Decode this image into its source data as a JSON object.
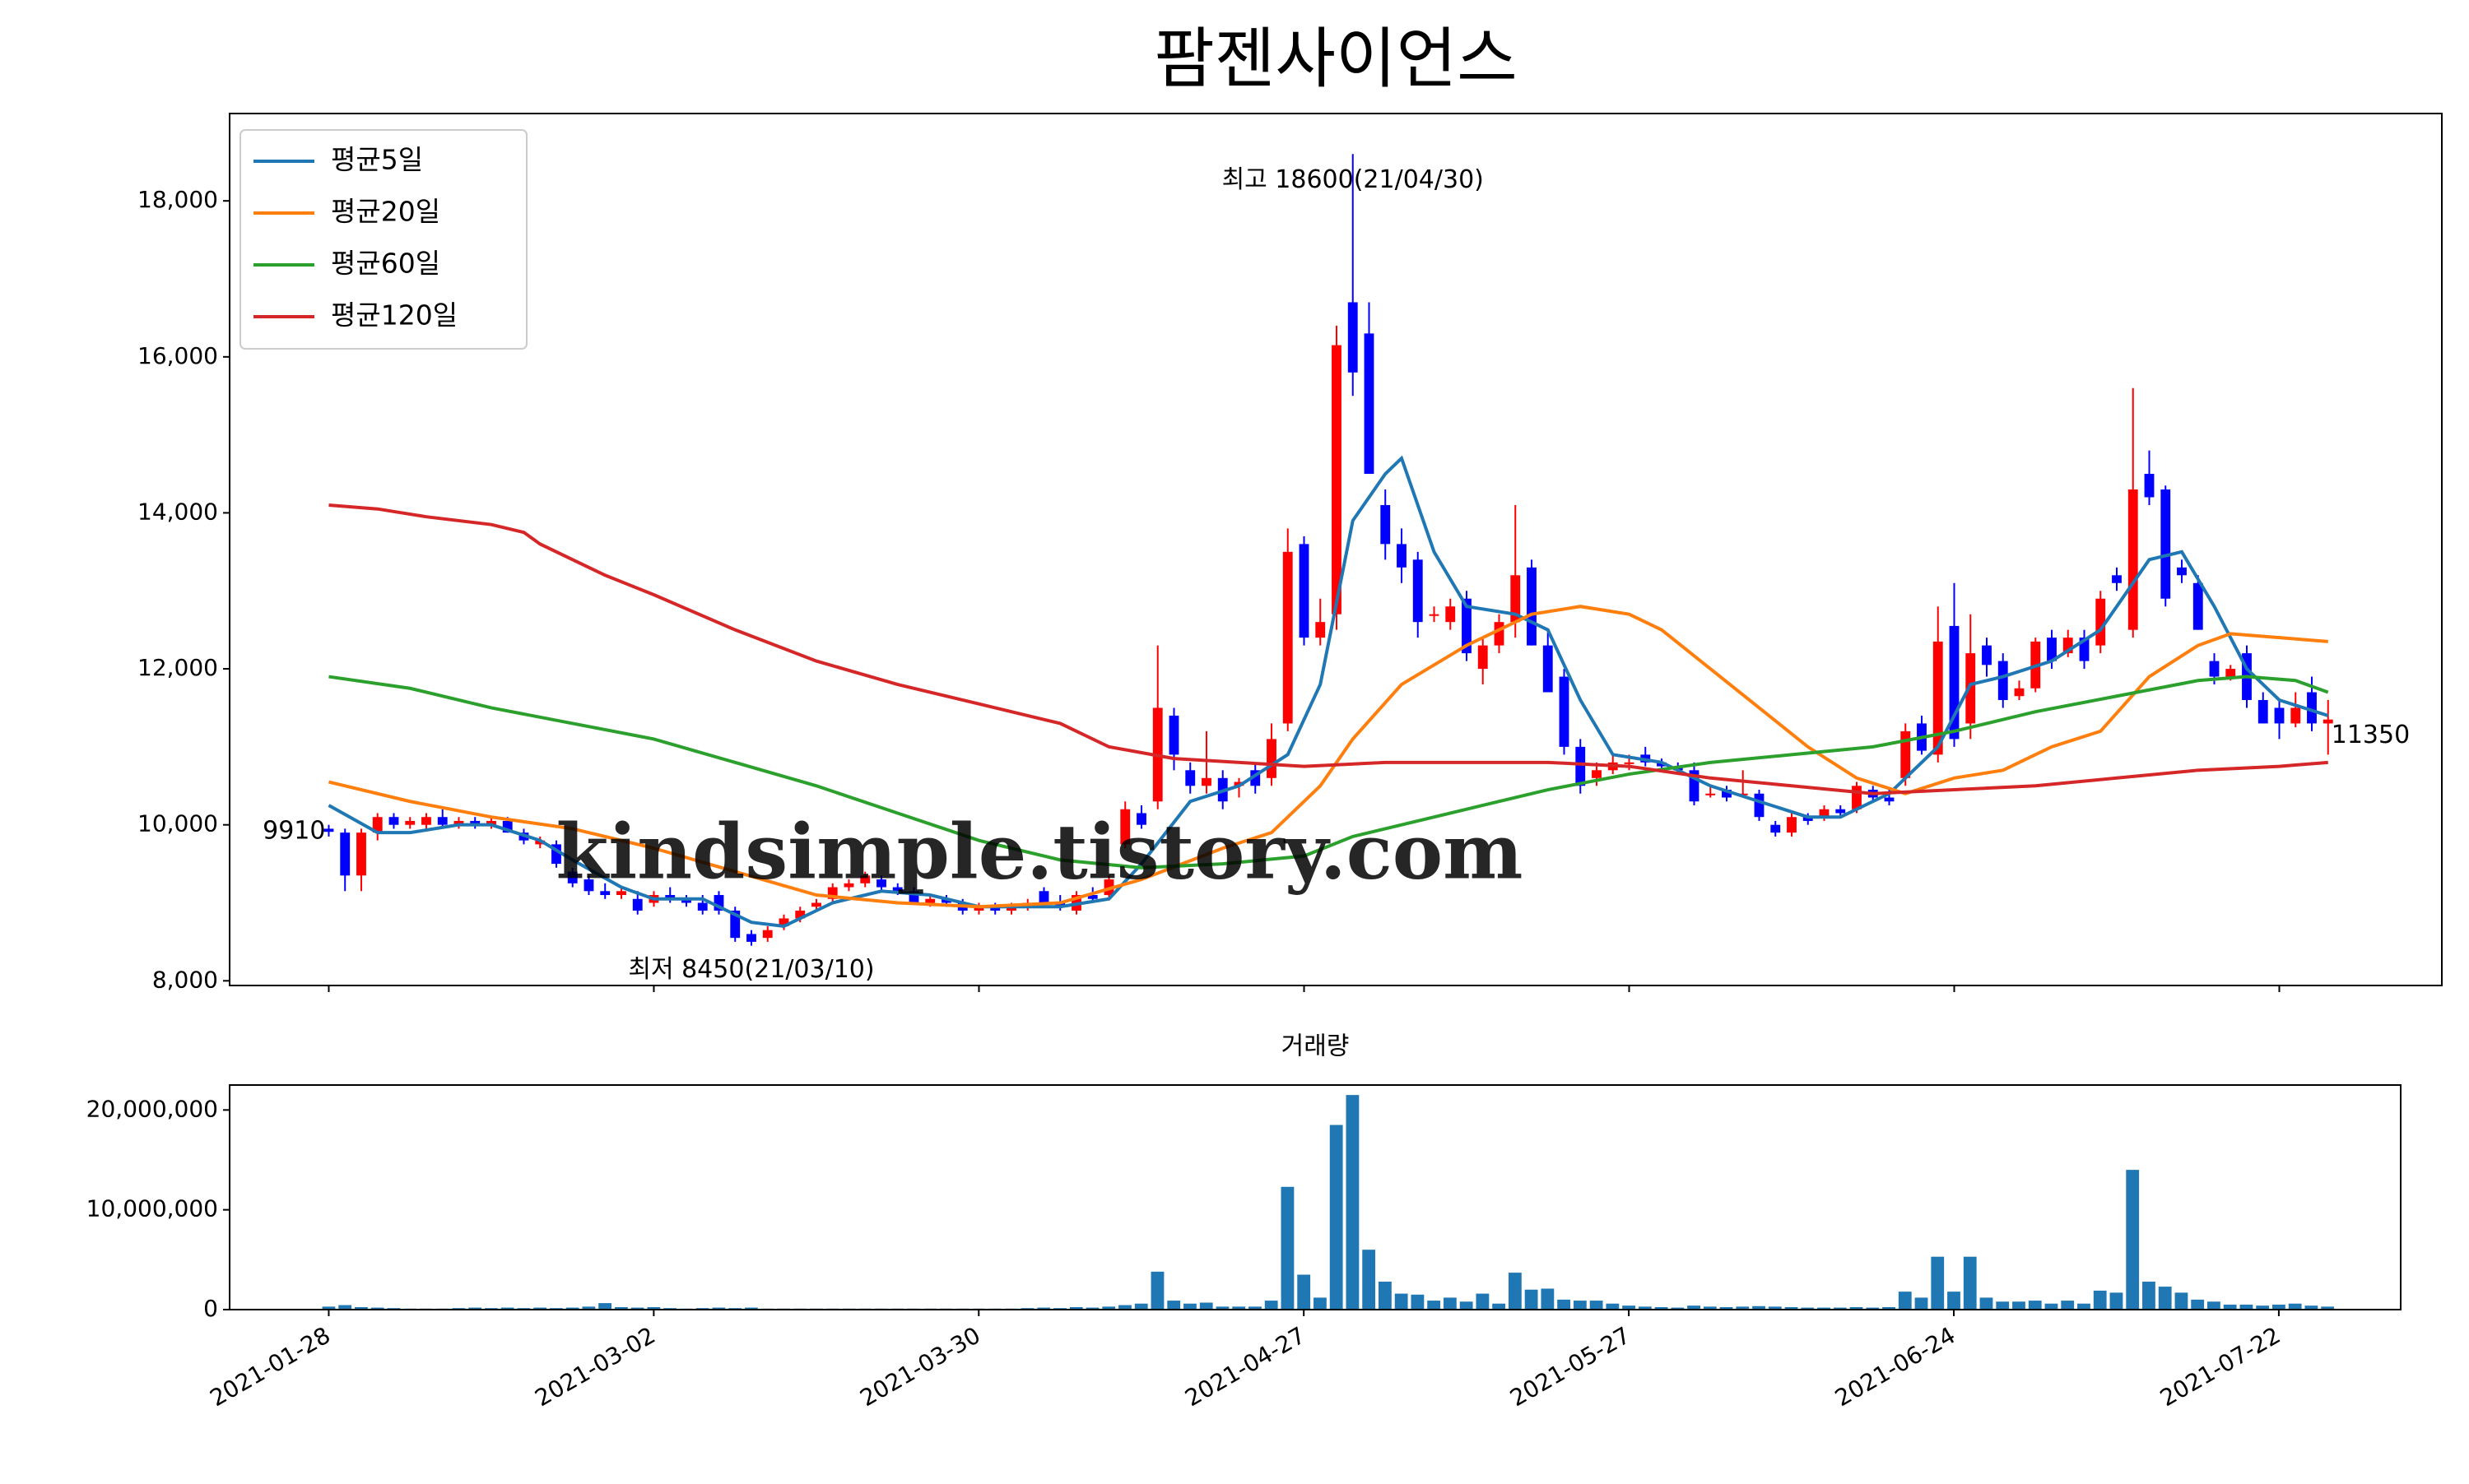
{
  "chart_data": [
    {
      "type": "candlestick",
      "title": "팜젠사이언스",
      "up_color": "red",
      "down_color": "blue",
      "legend": "upper left",
      "watermark": "kindsimple.tistory.com",
      "xlim": [
        -6.1,
        130
      ],
      "ylim": [
        7940,
        19120
      ],
      "xticks": [
        0,
        20,
        40,
        60,
        80,
        100,
        120
      ],
      "yticks": [
        {
          "value": 8000,
          "label": "8,000"
        },
        {
          "value": 10000,
          "label": "10,000"
        },
        {
          "value": 12000,
          "label": "12,000"
        },
        {
          "value": 14000,
          "label": "14,000"
        },
        {
          "value": 16000,
          "label": "16,000"
        },
        {
          "value": 18000,
          "label": "18,000"
        }
      ],
      "x": [
        0,
        1,
        2,
        3,
        4,
        5,
        6,
        7,
        8,
        9,
        10,
        11,
        12,
        13,
        14,
        15,
        16,
        17,
        18,
        19,
        20,
        21,
        22,
        23,
        24,
        25,
        26,
        27,
        28,
        29,
        30,
        31,
        32,
        33,
        34,
        35,
        36,
        37,
        38,
        39,
        40,
        41,
        42,
        43,
        44,
        45,
        46,
        47,
        48,
        49,
        50,
        51,
        52,
        53,
        54,
        55,
        56,
        57,
        58,
        59,
        60,
        61,
        62,
        63,
        64,
        65,
        66,
        67,
        68,
        69,
        70,
        71,
        72,
        73,
        74,
        75,
        76,
        77,
        78,
        79,
        80,
        81,
        82,
        83,
        84,
        85,
        86,
        87,
        88,
        89,
        90,
        91,
        92,
        93,
        94,
        95,
        96,
        97,
        98,
        99,
        100,
        101,
        102,
        103,
        104,
        105,
        106,
        107,
        108,
        109,
        110,
        111,
        112,
        113,
        114,
        115,
        116,
        117,
        118,
        119,
        120,
        121,
        122,
        123
      ],
      "open": [
        9950,
        9900,
        9350,
        9900,
        10100,
        10000,
        10000,
        10100,
        10000,
        10050,
        10000,
        10050,
        9900,
        9750,
        9750,
        9400,
        9300,
        9150,
        9100,
        9050,
        9000,
        9100,
        9050,
        9000,
        9100,
        8900,
        8600,
        8550,
        8700,
        8800,
        8950,
        9050,
        9200,
        9250,
        9300,
        9200,
        9150,
        9000,
        9050,
        9000,
        8900,
        8950,
        8900,
        8950,
        9150,
        9000,
        8900,
        9100,
        9100,
        9750,
        10150,
        10300,
        11400,
        10700,
        10500,
        10600,
        10500,
        10700,
        10600,
        11300,
        13600,
        12400,
        12700,
        16700,
        16300,
        14100,
        13600,
        13400,
        12700,
        12600,
        12900,
        12000,
        12300,
        12600,
        13300,
        12300,
        11900,
        11000,
        10600,
        10700,
        10800,
        10900,
        10800,
        10750,
        10700,
        10400,
        10450,
        10400,
        10400,
        10000,
        9900,
        10100,
        10100,
        10200,
        10200,
        10450,
        10350,
        10600,
        11300,
        10900,
        12550,
        11300,
        12300,
        12100,
        11650,
        11750,
        12400,
        12200,
        12400,
        12300,
        13200,
        12500,
        14500,
        14300,
        13300,
        13100,
        12100,
        11900,
        12200,
        11600,
        11500,
        11300,
        11700,
        11300
      ],
      "high": [
        10000,
        9950,
        9950,
        10150,
        10150,
        10100,
        10150,
        10200,
        10100,
        10100,
        10100,
        10100,
        9950,
        9850,
        9800,
        9450,
        9350,
        9250,
        9200,
        9150,
        9150,
        9200,
        9100,
        9100,
        9150,
        8950,
        8650,
        8700,
        8850,
        8950,
        9050,
        9250,
        9300,
        9400,
        9350,
        9250,
        9200,
        9100,
        9100,
        9050,
        9000,
        9000,
        9000,
        9050,
        9200,
        9100,
        9150,
        9200,
        9350,
        10300,
        10250,
        12300,
        11500,
        10800,
        11200,
        10700,
        10600,
        10800,
        11300,
        13800,
        13700,
        12900,
        16400,
        18600,
        16700,
        14300,
        13800,
        13500,
        12800,
        12900,
        13000,
        12400,
        12700,
        14100,
        13400,
        12500,
        12000,
        11100,
        10800,
        10900,
        10900,
        11000,
        10850,
        10800,
        10800,
        10500,
        10500,
        10700,
        10450,
        10050,
        10150,
        10150,
        10250,
        10250,
        10550,
        10500,
        10450,
        11300,
        11400,
        12800,
        13100,
        12700,
        12400,
        12200,
        11850,
        12400,
        12500,
        12500,
        12500,
        13000,
        13300,
        15600,
        14800,
        14350,
        13400,
        13200,
        12200,
        12050,
        12300,
        11700,
        11600,
        11700,
        11900,
        11600
      ],
      "low": [
        9850,
        9150,
        9150,
        9800,
        9950,
        9950,
        9950,
        9950,
        9950,
        9950,
        9950,
        9900,
        9750,
        9700,
        9450,
        9200,
        9100,
        9050,
        9050,
        8850,
        8950,
        9000,
        8950,
        8850,
        8850,
        8500,
        8450,
        8500,
        8650,
        8750,
        8900,
        9000,
        9150,
        9200,
        9150,
        9100,
        9000,
        8950,
        8950,
        8850,
        8850,
        8850,
        8850,
        8900,
        8950,
        8900,
        8850,
        9000,
        9050,
        9700,
        9950,
        10200,
        10700,
        10400,
        10400,
        10200,
        10350,
        10400,
        10500,
        11200,
        12300,
        12300,
        12500,
        15500,
        14500,
        13400,
        13100,
        12400,
        12600,
        12500,
        12100,
        11800,
        12200,
        12400,
        12300,
        11700,
        10900,
        10400,
        10500,
        10650,
        10700,
        10750,
        10700,
        10650,
        10250,
        10350,
        10300,
        10350,
        10050,
        9850,
        9850,
        10000,
        10050,
        10100,
        10150,
        10300,
        10250,
        10500,
        10900,
        10800,
        11000,
        11100,
        11900,
        11500,
        11600,
        11700,
        12000,
        12150,
        12000,
        12200,
        13000,
        12400,
        14100,
        12800,
        13100,
        12500,
        11800,
        11850,
        11500,
        11300,
        11100,
        11250,
        11200,
        10900
      ],
      "close": [
        9910,
        9350,
        9900,
        10100,
        10000,
        10050,
        10100,
        10000,
        10050,
        10000,
        10050,
        9900,
        9800,
        9800,
        9500,
        9250,
        9150,
        9100,
        9150,
        8900,
        9100,
        9050,
        9000,
        8900,
        8900,
        8550,
        8500,
        8650,
        8800,
        8900,
        9000,
        9200,
        9250,
        9350,
        9200,
        9150,
        9000,
        9050,
        9000,
        8900,
        8950,
        8900,
        8950,
        9000,
        9000,
        8950,
        9100,
        9050,
        9300,
        10200,
        10000,
        11500,
        10900,
        10500,
        10600,
        10300,
        10550,
        10500,
        11100,
        13500,
        12400,
        12600,
        16150,
        15800,
        14500,
        13600,
        13300,
        12600,
        12700,
        12800,
        12200,
        12300,
        12600,
        13200,
        12300,
        11700,
        11000,
        10500,
        10700,
        10800,
        10800,
        10800,
        10750,
        10700,
        10300,
        10400,
        10350,
        10400,
        10100,
        9900,
        10100,
        10050,
        10200,
        10150,
        10500,
        10350,
        10300,
        11200,
        10950,
        12350,
        11100,
        12200,
        12050,
        11600,
        11750,
        12350,
        12100,
        12400,
        12100,
        12900,
        13100,
        14300,
        14200,
        12900,
        13200,
        12500,
        11900,
        12000,
        11600,
        11300,
        11300,
        11500,
        11300,
        11350
      ],
      "series": [
        {
          "name": "평균5일",
          "color": "#1f77b4",
          "x": [
            0,
            3,
            5,
            8,
            10,
            13,
            15,
            18,
            20,
            23,
            26,
            28,
            31,
            34,
            37,
            40,
            45,
            48,
            50,
            53,
            56,
            59,
            61,
            63,
            65,
            66,
            68,
            70,
            73,
            75,
            77,
            79,
            82,
            85,
            88,
            91,
            93,
            96,
            99,
            101,
            103,
            106,
            109,
            112,
            114,
            116,
            118,
            120,
            123
          ],
          "values": [
            10250,
            9900,
            9900,
            10000,
            10000,
            9800,
            9550,
            9200,
            9050,
            9050,
            8750,
            8700,
            9000,
            9150,
            9100,
            8950,
            8950,
            9050,
            9500,
            10300,
            10500,
            10900,
            11800,
            13900,
            14500,
            14700,
            13500,
            12800,
            12700,
            12500,
            11600,
            10900,
            10800,
            10500,
            10300,
            10100,
            10100,
            10400,
            11000,
            11800,
            11900,
            12100,
            12500,
            13400,
            13500,
            12800,
            12000,
            11600,
            11400
          ]
        },
        {
          "name": "평균20일",
          "color": "#ff7f0e",
          "x": [
            0,
            5,
            10,
            15,
            20,
            25,
            30,
            35,
            40,
            45,
            50,
            55,
            58,
            61,
            63,
            66,
            70,
            74,
            77,
            80,
            82,
            85,
            88,
            91,
            94,
            97,
            100,
            103,
            106,
            109,
            112,
            115,
            117,
            120,
            123
          ],
          "values": [
            10550,
            10300,
            10100,
            9950,
            9700,
            9400,
            9100,
            9000,
            8950,
            9000,
            9300,
            9700,
            9900,
            10500,
            11100,
            11800,
            12300,
            12700,
            12800,
            12700,
            12500,
            12000,
            11500,
            11000,
            10600,
            10400,
            10600,
            10700,
            11000,
            11200,
            11900,
            12300,
            12450,
            12400,
            12350
          ]
        },
        {
          "name": "평균60일",
          "color": "#2ca02c",
          "x": [
            0,
            5,
            10,
            15,
            20,
            25,
            30,
            35,
            40,
            45,
            50,
            55,
            60,
            63,
            67,
            71,
            75,
            80,
            85,
            90,
            95,
            100,
            105,
            110,
            115,
            118,
            121,
            123
          ],
          "values": [
            11900,
            11750,
            11500,
            11300,
            11100,
            10800,
            10500,
            10150,
            9800,
            9550,
            9450,
            9500,
            9600,
            9850,
            10050,
            10250,
            10450,
            10650,
            10800,
            10900,
            11000,
            11200,
            11450,
            11650,
            11850,
            11900,
            11850,
            11700
          ]
        },
        {
          "name": "평균120일",
          "color": "#d62728",
          "x": [
            0,
            3,
            6,
            10,
            12,
            13,
            17,
            20,
            25,
            30,
            35,
            40,
            45,
            48,
            52,
            60,
            65,
            75,
            80,
            85,
            90,
            95,
            100,
            105,
            110,
            115,
            120,
            123
          ],
          "values": [
            14100,
            14050,
            13950,
            13850,
            13750,
            13600,
            13200,
            12950,
            12500,
            12100,
            11800,
            11550,
            11300,
            11000,
            10850,
            10750,
            10800,
            10800,
            10750,
            10600,
            10500,
            10400,
            10450,
            10500,
            10600,
            10700,
            10750,
            10800
          ]
        }
      ],
      "annotations": [
        {
          "text": "최고 18600(21/04/30)",
          "x": 63,
          "y": 18600,
          "color": "red"
        },
        {
          "text": "최저 8450(21/03/10)",
          "x": 26,
          "y": 8450,
          "color": "blue"
        }
      ]
    },
    {
      "type": "bar",
      "title": "거래량",
      "color": "#1f77b4",
      "xlim": [
        -6.1,
        127.5
      ],
      "ylim": [
        0,
        22500000
      ],
      "xticks": [
        {
          "value": 0,
          "label": "2021-01-28"
        },
        {
          "value": 20,
          "label": "2021-03-02"
        },
        {
          "value": 40,
          "label": "2021-03-30"
        },
        {
          "value": 60,
          "label": "2021-04-27"
        },
        {
          "value": 80,
          "label": "2021-05-27"
        },
        {
          "value": 100,
          "label": "2021-06-24"
        },
        {
          "value": 120,
          "label": "2021-07-22"
        }
      ],
      "yticks": [
        0,
        {
          "value": 10000000,
          "label": "10,000,000"
        },
        {
          "value": 20000000,
          "label": "20,000,000"
        }
      ],
      "values": [
        300000,
        450000,
        250000,
        200000,
        150000,
        100000,
        100000,
        100000,
        150000,
        200000,
        150000,
        200000,
        150000,
        200000,
        150000,
        200000,
        300000,
        650000,
        250000,
        200000,
        250000,
        150000,
        100000,
        150000,
        200000,
        150000,
        200000,
        100000,
        100000,
        100000,
        100000,
        100000,
        100000,
        100000,
        100000,
        100000,
        100000,
        100000,
        100000,
        100000,
        100000,
        100000,
        100000,
        150000,
        200000,
        150000,
        250000,
        200000,
        300000,
        450000,
        600000,
        3800000,
        900000,
        600000,
        700000,
        300000,
        300000,
        300000,
        900000,
        12300000,
        3500000,
        1200000,
        18500000,
        21500000,
        6000000,
        2800000,
        1600000,
        1500000,
        900000,
        1200000,
        800000,
        1600000,
        600000,
        3700000,
        2000000,
        2100000,
        1000000,
        900000,
        900000,
        600000,
        400000,
        300000,
        250000,
        200000,
        400000,
        300000,
        250000,
        300000,
        350000,
        300000,
        250000,
        200000,
        200000,
        200000,
        250000,
        200000,
        250000,
        1800000,
        1200000,
        5300000,
        1800000,
        5300000,
        1200000,
        800000,
        800000,
        900000,
        600000,
        900000,
        600000,
        1900000,
        1700000,
        14000000,
        2800000,
        2300000,
        1700000,
        1000000,
        800000,
        500000,
        500000,
        400000,
        500000,
        600000,
        400000,
        300000
      ]
    }
  ]
}
